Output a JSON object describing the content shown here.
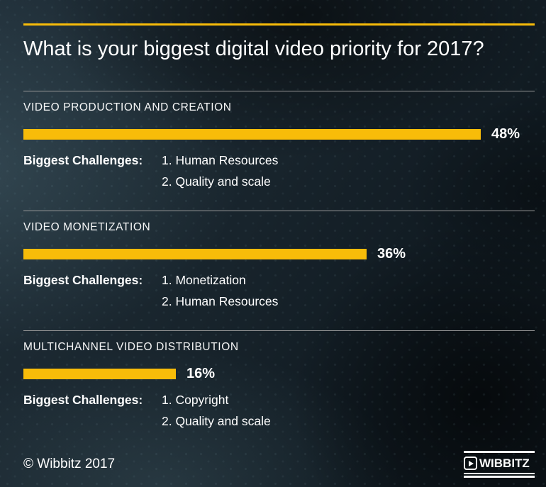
{
  "title": "What is your biggest digital video priority for 2017?",
  "labels": {
    "challenges": "Biggest Challenges:"
  },
  "colors": {
    "accent_yellow": "#F8BC09",
    "background_dark": "#121C22",
    "text": "#FFFFFF",
    "divider_gray": "#9A9A9A"
  },
  "sections": [
    {
      "heading": "VIDEO PRODUCTION AND CREATION",
      "value": 48,
      "value_label": "48%",
      "challenges": [
        "1. Human Resources",
        "2. Quality and scale"
      ]
    },
    {
      "heading": "VIDEO MONETIZATION",
      "value": 36,
      "value_label": "36%",
      "challenges": [
        "1. Monetization",
        "2. Human Resources"
      ]
    },
    {
      "heading": "MULTICHANNEL VIDEO DISTRIBUTION",
      "value": 16,
      "value_label": "16%",
      "challenges": [
        "1. Copyright",
        "2. Quality and scale"
      ]
    }
  ],
  "footer": {
    "copyright": "© Wibbitz 2017",
    "logo_text": "WIBBITZ"
  },
  "chart_data": {
    "type": "bar",
    "orientation": "horizontal",
    "title": "What is your biggest digital video priority for 2017?",
    "categories": [
      "VIDEO PRODUCTION AND CREATION",
      "VIDEO MONETIZATION",
      "MULTICHANNEL VIDEO DISTRIBUTION"
    ],
    "values": [
      48,
      36,
      16
    ],
    "value_labels": [
      "48%",
      "36%",
      "16%"
    ],
    "unit": "%",
    "bar_color": "#F8BC09",
    "grid": false,
    "legend": false,
    "annotations": [
      {
        "category": "VIDEO PRODUCTION AND CREATION",
        "biggest_challenges": [
          "1. Human Resources",
          "2. Quality and scale"
        ]
      },
      {
        "category": "VIDEO MONETIZATION",
        "biggest_challenges": [
          "1. Monetization",
          "2. Human Resources"
        ]
      },
      {
        "category": "MULTICHANNEL VIDEO DISTRIBUTION",
        "biggest_challenges": [
          "1. Copyright",
          "2. Quality and scale"
        ]
      }
    ],
    "source": "© Wibbitz 2017"
  }
}
